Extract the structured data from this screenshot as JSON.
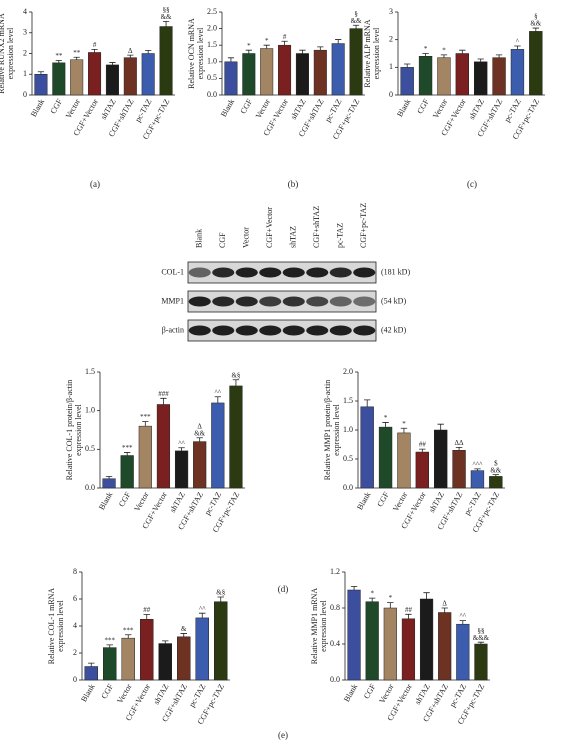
{
  "chart_data": [
    {
      "type": "bar",
      "ylabel": [
        "Relative RUNX2 mRNA",
        "expression level"
      ],
      "categories": [
        "Blank",
        "CGF",
        "Vector",
        "CGF+Vector",
        "shTAZ",
        "CGF+shTAZ",
        "pc-TAZ",
        "CGF+pc-TAZ"
      ],
      "values": [
        1.0,
        1.55,
        1.7,
        2.05,
        1.45,
        1.8,
        2.0,
        3.3
      ],
      "errors": [
        0.12,
        0.12,
        0.12,
        0.15,
        0.12,
        0.12,
        0.15,
        0.25
      ],
      "colors": [
        "#3b4f9e",
        "#1f4a2a",
        "#a48563",
        "#7a2020",
        "#1b1b1b",
        "#6e3222",
        "#3c5cae",
        "#2c3a12"
      ],
      "annotations": [
        [],
        [
          "**"
        ],
        [
          "**"
        ],
        [
          "#"
        ],
        [],
        [
          "Δ"
        ],
        [],
        [
          "§§",
          "&&"
        ]
      ],
      "ylim": [
        0,
        4
      ],
      "yticks": [
        0,
        1,
        2,
        3,
        4
      ]
    },
    {
      "type": "bar",
      "ylabel": [
        "Relative OCN mRNA",
        "expression level"
      ],
      "categories": [
        "Blank",
        "CGF",
        "Vector",
        "CGF+Vector",
        "shTAZ",
        "CGF+shTAZ",
        "pc-TAZ",
        "CGF+pc-TAZ"
      ],
      "values": [
        1.0,
        1.25,
        1.4,
        1.5,
        1.25,
        1.35,
        1.55,
        2.0
      ],
      "errors": [
        0.12,
        0.1,
        0.1,
        0.12,
        0.1,
        0.1,
        0.12,
        0.1
      ],
      "colors": [
        "#3b4f9e",
        "#1f4a2a",
        "#a48563",
        "#7a2020",
        "#1b1b1b",
        "#6e3222",
        "#3c5cae",
        "#2c3a12"
      ],
      "annotations": [
        [],
        [
          "*"
        ],
        [
          "*"
        ],
        [
          "#"
        ],
        [],
        [],
        [],
        [
          "§",
          "&&"
        ]
      ],
      "ylim": [
        0,
        2.5
      ],
      "yticks": [
        {
          "value": 0,
          "label": "0.0"
        },
        0.5,
        {
          "value": 1,
          "label": "1.0"
        },
        1.5,
        {
          "value": 2,
          "label": "2.0"
        },
        2.5
      ]
    },
    {
      "type": "bar",
      "ylabel": [
        "Relative ALP mRNA",
        "expression level"
      ],
      "categories": [
        "Blank",
        "CGF",
        "Vector",
        "CGF+Vector",
        "shTAZ",
        "CGF+shTAZ",
        "pc-TAZ",
        "CGF+pc-TAZ"
      ],
      "values": [
        1.0,
        1.4,
        1.35,
        1.5,
        1.2,
        1.35,
        1.65,
        2.3
      ],
      "errors": [
        0.12,
        0.1,
        0.1,
        0.12,
        0.1,
        0.1,
        0.12,
        0.12
      ],
      "colors": [
        "#3b4f9e",
        "#1f4a2a",
        "#a48563",
        "#7a2020",
        "#1b1b1b",
        "#6e3222",
        "#3c5cae",
        "#2c3a12"
      ],
      "annotations": [
        [],
        [
          "*"
        ],
        [
          "*"
        ],
        [],
        [],
        [],
        [
          "^"
        ],
        [
          "§",
          "&&"
        ]
      ],
      "ylim": [
        0,
        3
      ],
      "yticks": [
        0,
        1,
        2,
        3
      ]
    },
    {
      "type": "bar",
      "ylabel": [
        "Relative COL-1 protein/β-actin",
        "expression level"
      ],
      "categories": [
        "Blank",
        "CGF",
        "Vector",
        "CGF+Vector",
        "shTAZ",
        "CGF+shTAZ",
        "pc-TAZ",
        "CGF+pc-TAZ"
      ],
      "values": [
        0.12,
        0.42,
        0.8,
        1.08,
        0.48,
        0.6,
        1.1,
        1.32
      ],
      "errors": [
        0.03,
        0.04,
        0.06,
        0.08,
        0.04,
        0.05,
        0.08,
        0.08
      ],
      "colors": [
        "#3b4f9e",
        "#1f4a2a",
        "#a48563",
        "#7a2020",
        "#1b1b1b",
        "#6e3222",
        "#3c5cae",
        "#2c3a12"
      ],
      "annotations": [
        [],
        [
          "***"
        ],
        [
          "***"
        ],
        [
          "###"
        ],
        [
          "^^"
        ],
        [
          "Δ",
          "&&"
        ],
        [
          "^^"
        ],
        [
          "&§"
        ]
      ],
      "ylim": [
        0,
        1.5
      ],
      "yticks": [
        {
          "value": 0,
          "label": "0.0"
        },
        0.5,
        {
          "value": 1,
          "label": "1.0"
        },
        1.5
      ]
    },
    {
      "type": "bar",
      "ylabel": [
        "Relative MMP1 protein/β-actin",
        "expression level"
      ],
      "categories": [
        "Blank",
        "CGF",
        "Vector",
        "CGF+Vector",
        "shTAZ",
        "CGF+shTAZ",
        "pc-TAZ",
        "CGF+pc-TAZ"
      ],
      "values": [
        1.4,
        1.05,
        0.95,
        0.62,
        1.0,
        0.65,
        0.3,
        0.2
      ],
      "errors": [
        0.12,
        0.08,
        0.08,
        0.05,
        0.1,
        0.05,
        0.03,
        0.03
      ],
      "colors": [
        "#3b4f9e",
        "#1f4a2a",
        "#a48563",
        "#7a2020",
        "#1b1b1b",
        "#6e3222",
        "#3c5cae",
        "#2c3a12"
      ],
      "annotations": [
        [],
        [
          "*"
        ],
        [
          "*"
        ],
        [
          "##"
        ],
        [],
        [
          "ΔΔ"
        ],
        [
          "^^^"
        ],
        [
          "$",
          "&&"
        ]
      ],
      "ylim": [
        0,
        2
      ],
      "yticks": [
        {
          "value": 0,
          "label": "0.0"
        },
        0.5,
        {
          "value": 1,
          "label": "1.0"
        },
        1.5,
        {
          "value": 2,
          "label": "2.0"
        }
      ]
    },
    {
      "type": "bar",
      "ylabel": [
        "Relative COL-1 mRNA",
        "expression level"
      ],
      "categories": [
        "Blank",
        "CGF",
        "Vector",
        "CGF+Vector",
        "shTAZ",
        "CGF+shTAZ",
        "pc-TAZ",
        "CGF+pc-TAZ"
      ],
      "values": [
        1.0,
        2.4,
        3.1,
        4.5,
        2.7,
        3.2,
        4.6,
        5.8
      ],
      "errors": [
        0.25,
        0.2,
        0.25,
        0.35,
        0.2,
        0.25,
        0.35,
        0.35
      ],
      "colors": [
        "#3b4f9e",
        "#1f4a2a",
        "#a48563",
        "#7a2020",
        "#1b1b1b",
        "#6e3222",
        "#3c5cae",
        "#2c3a12"
      ],
      "annotations": [
        [],
        [
          "***"
        ],
        [
          "***"
        ],
        [
          "##"
        ],
        [],
        [
          "&"
        ],
        [
          "^^"
        ],
        [
          "&§"
        ]
      ],
      "ylim": [
        0,
        8
      ],
      "yticks": [
        0,
        2,
        4,
        6,
        8
      ]
    },
    {
      "type": "bar",
      "ylabel": [
        "Relative MMP1 mRNA",
        "expression level"
      ],
      "categories": [
        "Blank",
        "CGF",
        "Vector",
        "CGF+Vector",
        "shTAZ",
        "CGF+shTAZ",
        "pc-TAZ",
        "CGF+pc-TAZ"
      ],
      "values": [
        1.0,
        0.87,
        0.8,
        0.68,
        0.9,
        0.75,
        0.62,
        0.4
      ],
      "errors": [
        0.04,
        0.04,
        0.06,
        0.05,
        0.07,
        0.05,
        0.04,
        0.02
      ],
      "colors": [
        "#3b4f9e",
        "#1f4a2a",
        "#a48563",
        "#7a2020",
        "#1b1b1b",
        "#6e3222",
        "#3c5cae",
        "#2c3a12"
      ],
      "annotations": [
        [],
        [
          "*"
        ],
        [
          "*"
        ],
        [
          "##"
        ],
        [],
        [
          "Δ"
        ],
        [
          "^^"
        ],
        [
          "§§",
          "&&&"
        ]
      ],
      "ylim": [
        0,
        1.2
      ],
      "yticks": [
        {
          "value": 0,
          "label": "0.0"
        },
        0.4,
        0.8,
        1.2
      ]
    }
  ],
  "panels": [
    "(a)",
    "(b)",
    "(c)",
    "(d)",
    "(e)"
  ],
  "blot": {
    "lanes": [
      "Blank",
      "CGF",
      "Vector",
      "CGF+Vector",
      "shTAZ",
      "CGF+shTAZ",
      "pc-TAZ",
      "CGF+pc-TAZ"
    ],
    "rows": [
      {
        "label": "COL-1",
        "size": "(181 kD)"
      },
      {
        "label": "MMP1",
        "size": "(54 kD)"
      },
      {
        "label": "β-actin",
        "size": "(42 kD)"
      }
    ]
  }
}
